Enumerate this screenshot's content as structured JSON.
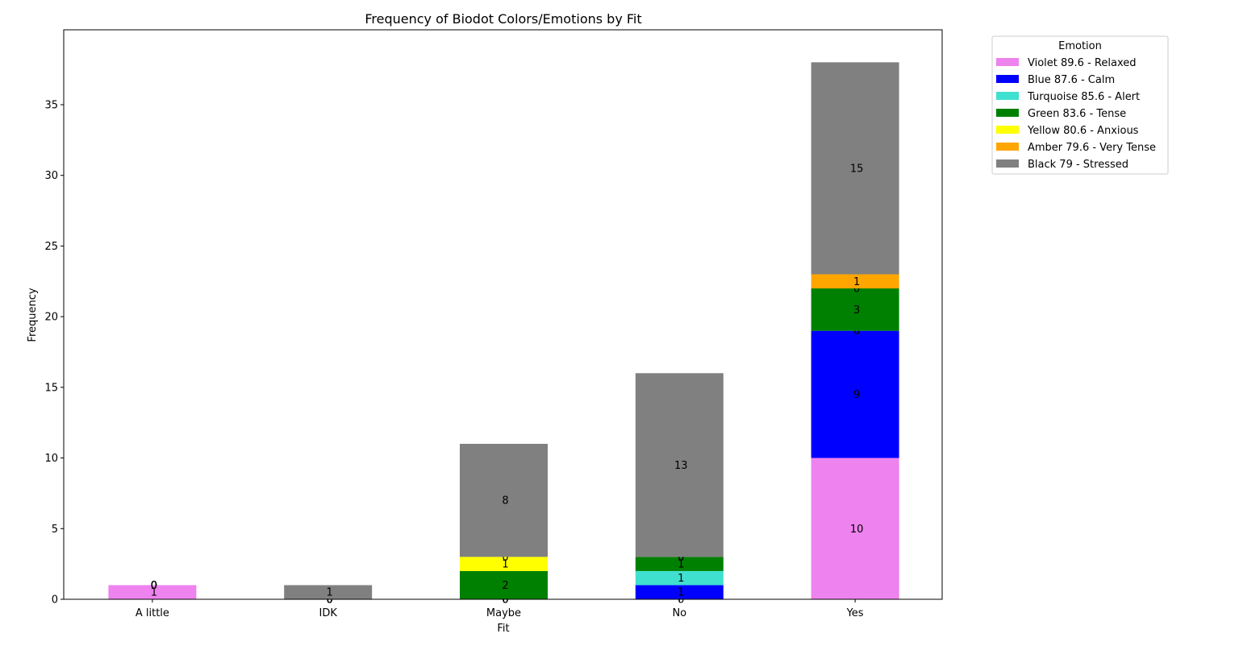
{
  "chart_data": {
    "type": "bar",
    "stacked": true,
    "title": "Frequency of Biodot Colors/Emotions by Fit",
    "xlabel": "Fit",
    "ylabel": "Frequency",
    "categories": [
      "A little",
      "IDK",
      "Maybe",
      "No",
      "Yes"
    ],
    "ylim": [
      0,
      40
    ],
    "yticks": [
      0,
      5,
      10,
      15,
      20,
      25,
      30,
      35
    ],
    "grid": false,
    "legend": {
      "title": "Emotion",
      "placement": "outside-top-right"
    },
    "series": [
      {
        "name": "Violet 89.6 - Relaxed",
        "color": "#ee82ee",
        "values": [
          1,
          0,
          0,
          0,
          10
        ]
      },
      {
        "name": "Blue 87.6 - Calm",
        "color": "#0000ff",
        "values": [
          0,
          0,
          0,
          1,
          9
        ]
      },
      {
        "name": "Turquoise 85.6 - Alert",
        "color": "#40e0d0",
        "values": [
          0,
          0,
          0,
          1,
          0
        ]
      },
      {
        "name": "Green 83.6 - Tense",
        "color": "#008000",
        "values": [
          0,
          0,
          2,
          1,
          3
        ]
      },
      {
        "name": "Yellow 80.6 - Anxious",
        "color": "#ffff00",
        "values": [
          0,
          0,
          1,
          0,
          0
        ]
      },
      {
        "name": "Amber 79.6 - Very Tense",
        "color": "#ffa500",
        "values": [
          0,
          0,
          0,
          0,
          1
        ]
      },
      {
        "name": "Black 79 - Stressed",
        "color": "#808080",
        "values": [
          0,
          1,
          8,
          13,
          15
        ]
      }
    ]
  }
}
